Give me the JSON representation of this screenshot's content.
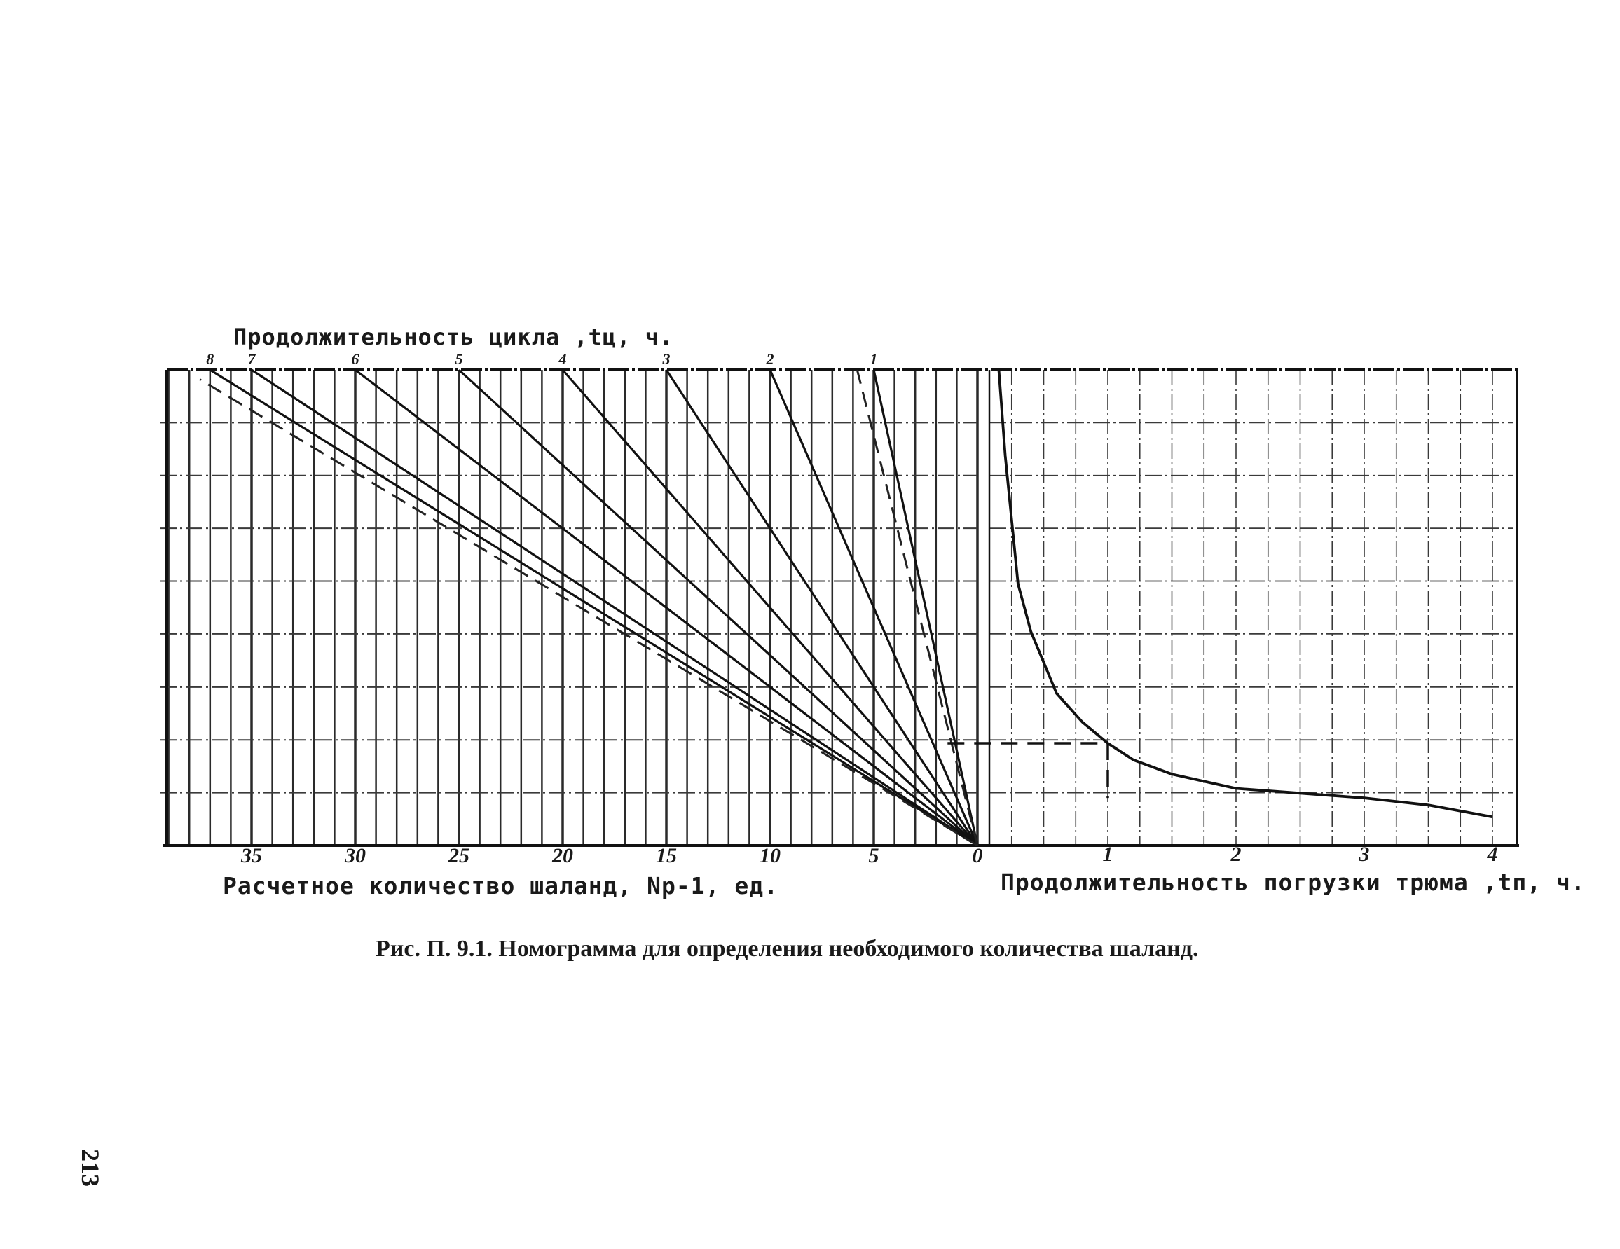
{
  "texts": {
    "top_title": "Продолжительность цикла ,tц, ч.",
    "left_xlabel": "Расчетное количество шаланд, Np-1, ед.",
    "right_xlabel": "Продолжительность погрузки трюма ,tп, ч.",
    "caption": "Рис. П. 9.1. Номограмма для определения необходимого количества шаланд.",
    "page_number": "213"
  },
  "chart_data": [
    {
      "type": "line",
      "title": "Продолжительность цикла ,tц, ч.",
      "xlabel": "Расчетное количество шаланд, Np-1, ед.",
      "ylabel": "",
      "x_reversed": true,
      "xlim": [
        0,
        39
      ],
      "ylim": [
        0,
        1
      ],
      "x_ticks": [
        35,
        30,
        25,
        20,
        15,
        10,
        5,
        0
      ],
      "grid": true,
      "series": [
        {
          "name": "1",
          "points": [
            [
              0,
              0
            ],
            [
              5,
              1
            ]
          ]
        },
        {
          "name": "2",
          "points": [
            [
              0,
              0
            ],
            [
              10,
              1
            ]
          ]
        },
        {
          "name": "3",
          "points": [
            [
              0,
              0
            ],
            [
              15,
              1
            ]
          ]
        },
        {
          "name": "4",
          "points": [
            [
              0,
              0
            ],
            [
              20,
              1
            ]
          ]
        },
        {
          "name": "5",
          "points": [
            [
              0,
              0
            ],
            [
              25,
              1
            ]
          ]
        },
        {
          "name": "6",
          "points": [
            [
              0,
              0
            ],
            [
              30,
              1
            ]
          ]
        },
        {
          "name": "7",
          "points": [
            [
              0,
              0
            ],
            [
              35,
              1
            ]
          ]
        },
        {
          "name": "8",
          "points": [
            [
              0,
              0
            ],
            [
              37,
              1
            ]
          ]
        }
      ],
      "guide_lines": [
        {
          "style": "dashed",
          "points": [
            [
              0,
              0
            ],
            [
              5.8,
              1
            ]
          ]
        },
        {
          "style": "dashed",
          "points": [
            [
              0,
              0
            ],
            [
              37.5,
              0.98
            ]
          ]
        }
      ]
    },
    {
      "type": "line",
      "title": "",
      "xlabel": "Продолжительность погрузки трюма ,tп, ч.",
      "ylabel": "",
      "xlim": [
        0,
        4.2
      ],
      "ylim": [
        0,
        1
      ],
      "x_ticks": [
        0,
        1,
        2,
        3,
        4
      ],
      "grid": true,
      "series": [
        {
          "name": "",
          "x": [
            0.15,
            0.2,
            0.3,
            0.4,
            0.6,
            0.8,
            1.0,
            1.2,
            1.5,
            2.0,
            2.5,
            3.0,
            3.5,
            4.0
          ],
          "y": [
            1.0,
            0.82,
            0.55,
            0.45,
            0.32,
            0.26,
            0.215,
            0.18,
            0.15,
            0.12,
            0.11,
            0.1,
            0.085,
            0.06
          ]
        }
      ],
      "guide_lines": [
        {
          "style": "dashed",
          "points": [
            [
              -0.25,
              0.215
            ],
            [
              1.0,
              0.215
            ]
          ]
        },
        {
          "style": "dashed",
          "points": [
            [
              1.0,
              0.215
            ],
            [
              1.0,
              0.1
            ]
          ]
        }
      ]
    }
  ]
}
